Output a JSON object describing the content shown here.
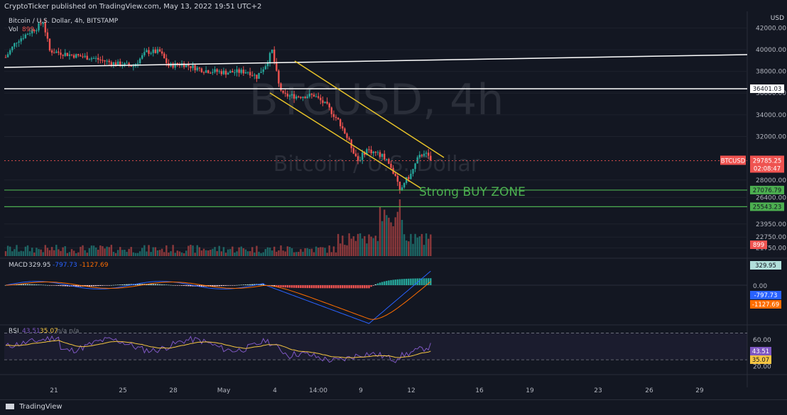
{
  "header": {
    "publisher_line": "CryptoTicker published on TradingView.com, May 13, 2022 19:51 UTC+2"
  },
  "legend": {
    "symbol_line": "Bitcoin / U.S. Dollar, 4h, BITSTAMP",
    "vol_label": "Vol",
    "vol_value": "899",
    "macd_label": "MACD",
    "macd_hist": "329.95",
    "macd_line": "-797.73",
    "macd_signal": "-1127.69",
    "rsi_label": "RSI",
    "rsi_value": "43.51",
    "rsi_ma": "35.07",
    "rsi_na": "n/a n/a"
  },
  "watermark": {
    "ticker": "BTCUSD, 4h",
    "name": "Bitcoin / U.S. Dollar"
  },
  "annotation": {
    "buy_zone": "Strong BUY ZONE"
  },
  "footer": {
    "brand": "TradingView"
  },
  "colors": {
    "background": "#131722",
    "up": "#26a69a",
    "down": "#ef5350",
    "channel": "#e6c229",
    "support": "#4caf50",
    "macd_line": "#2962ff",
    "macd_signal": "#ff6d00",
    "rsi_line": "#7e57c2",
    "rsi_ma": "#f5c542"
  },
  "chart_data": {
    "type": "candlestick",
    "symbol": "BTCUSD",
    "timeframe": "4h",
    "exchange": "BITSTAMP",
    "currency": "USD",
    "price_axis_ticks": [
      42000,
      40000,
      38000,
      36000,
      34000,
      32000,
      28000,
      26400,
      23950,
      22750,
      21750
    ],
    "date_axis_ticks": [
      "21",
      "25",
      "28",
      "May",
      "4",
      "14:00",
      "9",
      "12",
      "16",
      "19",
      "23",
      "26",
      "29"
    ],
    "levels": [
      {
        "label": "36401.03",
        "value": 36401.03,
        "color": "#ffffff"
      },
      {
        "label": "27076.79",
        "value": 27076.79,
        "color": "#4caf50"
      },
      {
        "label": "25543.23",
        "value": 25543.23,
        "color": "#4caf50"
      }
    ],
    "last_price": {
      "label": "BTCUSD",
      "value": "29785.25",
      "countdown": "02:08:47",
      "color": "#ef5350"
    },
    "volume_last": "899",
    "macd_axis_ticks": [
      "329.95",
      "0.00"
    ],
    "macd_badges": [
      {
        "value": "329.95",
        "color": "#b2dfdb"
      },
      {
        "value": "-797.73",
        "color": "#2962ff"
      },
      {
        "value": "-1127.69",
        "color": "#ff6d00"
      }
    ],
    "rsi_axis_ticks": [
      "60.00",
      "20.00"
    ],
    "rsi_badges": [
      {
        "value": "43.51",
        "color": "#7e57c2"
      },
      {
        "value": "35.07",
        "color": "#f5c542"
      }
    ],
    "price_path": [
      [
        0,
        39300
      ],
      [
        5,
        40800
      ],
      [
        10,
        41500
      ],
      [
        14,
        42000
      ],
      [
        17,
        42600
      ],
      [
        20,
        39900
      ],
      [
        30,
        39500
      ],
      [
        40,
        39200
      ],
      [
        50,
        38700
      ],
      [
        58,
        38500
      ],
      [
        64,
        39800
      ],
      [
        70,
        39800
      ],
      [
        74,
        38500
      ],
      [
        80,
        38700
      ],
      [
        90,
        38100
      ],
      [
        100,
        37900
      ],
      [
        110,
        38000
      ],
      [
        114,
        37500
      ],
      [
        118,
        38600
      ],
      [
        121,
        39900
      ],
      [
        124,
        36800
      ],
      [
        126,
        35800
      ],
      [
        132,
        35700
      ],
      [
        140,
        35800
      ],
      [
        146,
        34800
      ],
      [
        152,
        33200
      ],
      [
        156,
        31500
      ],
      [
        160,
        29800
      ],
      [
        164,
        30800
      ],
      [
        168,
        30500
      ],
      [
        172,
        30100
      ],
      [
        174,
        29500
      ],
      [
        176,
        28700
      ],
      [
        178,
        27600
      ],
      [
        179,
        27000
      ],
      [
        181,
        27800
      ],
      [
        184,
        28500
      ],
      [
        187,
        29900
      ],
      [
        190,
        30600
      ],
      [
        193,
        29785
      ]
    ]
  }
}
